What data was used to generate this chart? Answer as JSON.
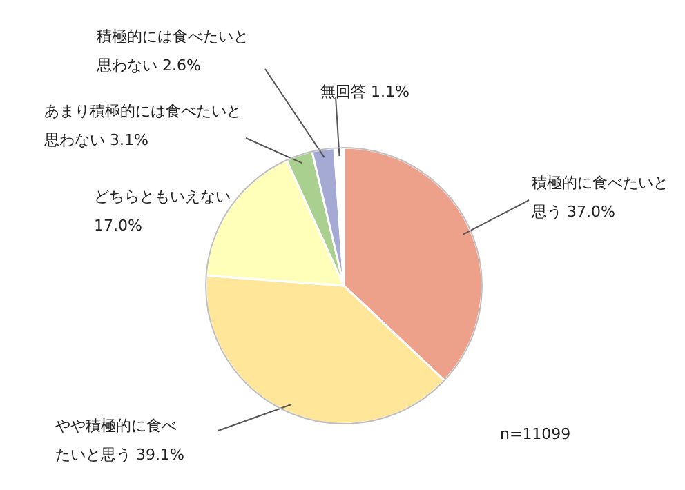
{
  "chart_data": {
    "type": "pie",
    "categories": [
      "積極的に食べたいと思う",
      "やや積極的に食べたいと思う",
      "どちらともいえない",
      "あまり積極的には食べたいと思わない",
      "積極的には食べたいと思わない",
      "無回答"
    ],
    "values": [
      37.0,
      39.1,
      17.0,
      3.1,
      2.6,
      1.1
    ],
    "colors": [
      "#eda08a",
      "#ffe699",
      "#ffffb9",
      "#a9d08e",
      "#a4aad4",
      "#ffffff"
    ],
    "value_labels": [
      "37.0%",
      "39.1%",
      "17.0%",
      "3.1%",
      "2.6%",
      "1.1%"
    ],
    "annotations": [
      "n=11099"
    ]
  }
}
